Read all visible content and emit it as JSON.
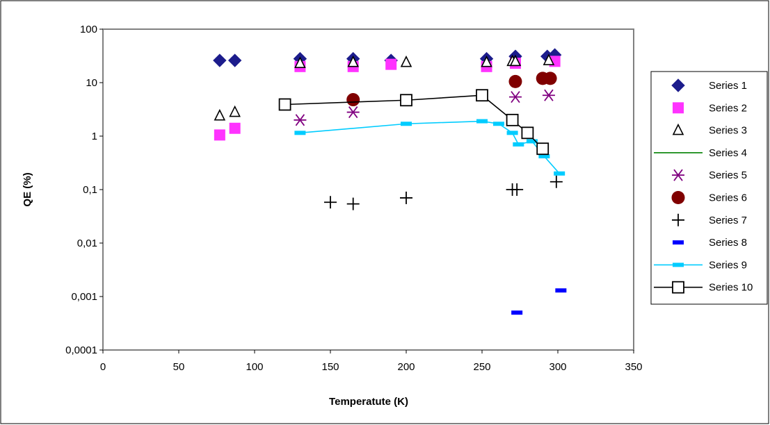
{
  "chart_data": {
    "type": "scatter",
    "xlabel": "Temperatute (K)",
    "ylabel": "QE (%)",
    "xlim": [
      0,
      350
    ],
    "ylim": [
      0.0001,
      100
    ],
    "yscale": "log",
    "x_ticks": [
      "0",
      "50",
      "100",
      "150",
      "200",
      "250",
      "300",
      "350"
    ],
    "y_ticks": [
      "0,0001",
      "0,001",
      "0,01",
      "0,1",
      "1",
      "10",
      "100"
    ],
    "grid": false,
    "legend_position": "right",
    "colors": {
      "s1": "#1c1c8c",
      "s2": "#ff33ff",
      "s3": "#000000",
      "s4": "#008000",
      "s5": "#800080",
      "s6": "#800000",
      "s7": "#000000",
      "s8": "#0000ff",
      "s9": "#00ccff",
      "s10": "#000000"
    },
    "series": [
      {
        "name": "Series 1",
        "marker": "diamond",
        "line": false,
        "points": [
          [
            77,
            26
          ],
          [
            87,
            26
          ],
          [
            130,
            28
          ],
          [
            165,
            28
          ],
          [
            190,
            26
          ],
          [
            253,
            28
          ],
          [
            272,
            31
          ],
          [
            293,
            31
          ],
          [
            298,
            33
          ]
        ]
      },
      {
        "name": "Series 2",
        "marker": "square",
        "line": false,
        "points": [
          [
            77,
            1.05
          ],
          [
            87,
            1.4
          ],
          [
            130,
            20
          ],
          [
            165,
            20
          ],
          [
            190,
            22
          ],
          [
            253,
            20
          ],
          [
            272,
            23
          ],
          [
            298,
            25
          ]
        ]
      },
      {
        "name": "Series 3",
        "marker": "triangle",
        "line": false,
        "points": [
          [
            77,
            2.4
          ],
          [
            87,
            2.8
          ],
          [
            130,
            23
          ],
          [
            165,
            24
          ],
          [
            200,
            24
          ],
          [
            253,
            24
          ],
          [
            270,
            25
          ],
          [
            272,
            25
          ],
          [
            294,
            26
          ]
        ]
      },
      {
        "name": "Series 4",
        "marker": "none",
        "line": true,
        "points": []
      },
      {
        "name": "Series 5",
        "marker": "asterisk",
        "line": false,
        "points": [
          [
            130,
            2.0
          ],
          [
            165,
            2.8
          ],
          [
            272,
            5.4
          ],
          [
            294,
            5.8
          ]
        ]
      },
      {
        "name": "Series 6",
        "marker": "circle",
        "line": false,
        "points": [
          [
            165,
            4.8
          ],
          [
            272,
            10.5
          ],
          [
            290,
            12
          ],
          [
            295,
            12
          ]
        ]
      },
      {
        "name": "Series 7",
        "marker": "plus",
        "line": false,
        "points": [
          [
            150,
            0.058
          ],
          [
            165,
            0.054
          ],
          [
            200,
            0.07
          ],
          [
            270,
            0.1
          ],
          [
            273,
            0.1
          ],
          [
            299,
            0.14
          ]
        ]
      },
      {
        "name": "Series 8",
        "marker": "dash",
        "line": false,
        "points": [
          [
            273,
            0.0005
          ],
          [
            302,
            0.0013
          ]
        ]
      },
      {
        "name": "Series 9",
        "marker": "dash",
        "line": true,
        "points": [
          [
            130,
            1.15
          ],
          [
            200,
            1.7
          ],
          [
            250,
            1.9
          ],
          [
            261,
            1.7
          ],
          [
            270,
            1.15
          ],
          [
            274,
            0.7
          ],
          [
            283,
            0.8
          ],
          [
            291,
            0.42
          ],
          [
            301,
            0.2
          ]
        ]
      },
      {
        "name": "Series 10",
        "marker": "open-square",
        "line": true,
        "points": [
          [
            120,
            3.9
          ],
          [
            200,
            4.7
          ],
          [
            250,
            5.8
          ],
          [
            270,
            2.0
          ],
          [
            280,
            1.15
          ],
          [
            290,
            0.58
          ]
        ]
      }
    ]
  }
}
